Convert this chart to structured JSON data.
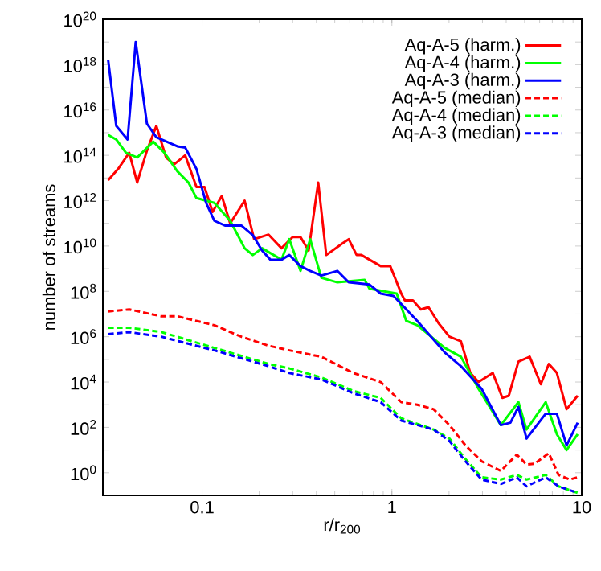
{
  "chart_data": {
    "type": "line",
    "xlabel": "r/r$_{200}$",
    "ylabel": "number of streams",
    "log": "xy",
    "xlim": [
      0.03,
      10
    ],
    "ylim": [
      0.1,
      1e+20
    ],
    "xticks": [
      0.1,
      1,
      10
    ],
    "yticks": [
      {
        "value": 1,
        "label": "10$^{0}$"
      },
      {
        "value": 10,
        "label": null
      },
      {
        "value": 100,
        "label": "10$^{2}$"
      },
      {
        "value": 1000,
        "label": null
      },
      {
        "value": 10000.0,
        "label": "10$^{4}$"
      },
      {
        "value": 100000.0,
        "label": null
      },
      {
        "value": 1000000.0,
        "label": "10$^{6}$"
      },
      {
        "value": 10000000.0,
        "label": null
      },
      {
        "value": 100000000.0,
        "label": "10$^{8}$"
      },
      {
        "value": 1000000000.0,
        "label": null
      },
      {
        "value": 10000000000.0,
        "label": "10$^{10}$"
      },
      {
        "value": 100000000000.0,
        "label": null
      },
      {
        "value": 1000000000000.0,
        "label": "10$^{12}$"
      },
      {
        "value": 10000000000000.0,
        "label": null
      },
      {
        "value": 100000000000000.0,
        "label": "10$^{14}$"
      },
      {
        "value": 1000000000000000.0,
        "label": null
      },
      {
        "value": 1e+16,
        "label": "10$^{16}$"
      },
      {
        "value": 1e+17,
        "label": null
      },
      {
        "value": 1e+18,
        "label": "10$^{18}$"
      },
      {
        "value": 1e+19,
        "label": null
      },
      {
        "value": 1e+20,
        "label": "10$^{20}$"
      }
    ],
    "legend": "top right",
    "series": [
      {
        "name": "Aq-A-5 (harm.)",
        "color": "#ff0000",
        "line_style": "solid",
        "x": [
          0.032,
          0.0361,
          0.0413,
          0.0455,
          0.0512,
          0.0574,
          0.0646,
          0.0712,
          0.0815,
          0.0934,
          0.103,
          0.1135,
          0.127,
          0.1406,
          0.1675,
          0.188,
          0.224,
          0.262,
          0.3,
          0.33,
          0.364,
          0.409,
          0.451,
          0.548,
          0.592,
          0.652,
          0.691,
          0.762,
          0.873,
          0.98,
          1.12,
          1.17,
          1.29,
          1.42,
          1.56,
          1.76,
          2.01,
          2.31,
          2.59,
          2.86,
          3.4,
          3.82,
          4.13,
          4.64,
          5.32,
          6.09,
          6.71,
          7.4,
          8.32,
          9.52
        ],
        "values": [
          8000000000000.0,
          25000000000000.0,
          130000000000000.0,
          6300000000000.0,
          160000000000000.0,
          2000000000000000.0,
          80000000000000.0,
          40000000000000.0,
          100000000000000.0,
          4000000000000.0,
          4000000000000.0,
          320000000000.0,
          1600000000000.0,
          100000000000.0,
          1000000000000.0,
          20000000000.0,
          32000000000.0,
          8000000000.0,
          25000000000.0,
          25000000000.0,
          6300000000.0,
          6300000000000.0,
          4000000000.0,
          13000000000.0,
          20000000000.0,
          4000000000.0,
          4000000000.0,
          2500000000.0,
          1300000000.0,
          1300000000.0,
          80000000.0,
          40000000.0,
          40000000.0,
          16000000.0,
          20000000.0,
          4000000.0,
          1000000.0,
          630000.0,
          25000.0,
          10000.0,
          25000.0,
          2000.0,
          2500.0,
          80000.0,
          130000.0,
          8000.0,
          63000.0,
          25000.0,
          630,
          2500.0
        ]
      },
      {
        "name": "Aq-A-4 (harm.)",
        "color": "#00ff00",
        "line_style": "solid",
        "x": [
          0.032,
          0.0353,
          0.0397,
          0.0455,
          0.0553,
          0.0633,
          0.074,
          0.0848,
          0.0934,
          0.116,
          0.1406,
          0.1675,
          0.185,
          0.207,
          0.262,
          0.288,
          0.33,
          0.371,
          0.425,
          0.516,
          0.719,
          0.762,
          1.06,
          1.19,
          1.36,
          1.9,
          2.31,
          2.86,
          3.75,
          4.64,
          5.12,
          6.46,
          7.4,
          8.32,
          9.52
        ],
        "values": [
          800000000000000.0,
          500000000000000.0,
          130000000000000.0,
          80000000000000.0,
          400000000000000.0,
          130000000000000.0,
          20000000000000.0,
          6300000000000.0,
          1300000000000.0,
          800000000000.0,
          130000000000.0,
          8000000000.0,
          4000000000.0,
          8000000000.0,
          2500000000.0,
          20000000000.0,
          800000000.0,
          20000000000.0,
          400000000.0,
          250000000.0,
          320000000.0,
          130000000.0,
          80000000.0,
          5000000.0,
          3200000.0,
          320000.0,
          130000.0,
          5000.0,
          126,
          1300.0,
          80,
          1300.0,
          50,
          10,
          50
        ]
      },
      {
        "name": "Aq-A-3 (harm.)",
        "color": "#0000ff",
        "line_style": "solid",
        "x": [
          0.032,
          0.0353,
          0.0405,
          0.0447,
          0.0512,
          0.0574,
          0.074,
          0.0815,
          0.0934,
          0.105,
          0.116,
          0.132,
          0.161,
          0.185,
          0.207,
          0.229,
          0.262,
          0.288,
          0.33,
          0.371,
          0.425,
          0.516,
          0.592,
          0.762,
          0.873,
          1.02,
          1.36,
          1.9,
          2.31,
          2.97,
          3.75,
          4.21,
          4.64,
          5.12,
          6.46,
          7.4,
          8.32,
          9.52
        ],
        "values": [
          1.6e+18,
          2000000000000000.0,
          500000000000000.0,
          1e+19,
          2500000000000000.0,
          630000000000000.0,
          250000000000000.0,
          220000000000000.0,
          25000000000000.0,
          800000000000.0,
          130000000000.0,
          80000000000.0,
          80000000000.0,
          30000000000.0,
          6300000000.0,
          2500000000.0,
          2500000000.0,
          4000000000.0,
          1300000000.0,
          800000000.0,
          500000000.0,
          800000000.0,
          250000000.0,
          200000000.0,
          80000000.0,
          63000000.0,
          5000000.0,
          200000.0,
          50000.0,
          5000.0,
          126,
          160,
          800,
          32,
          400,
          400,
          16,
          160
        ]
      },
      {
        "name": "Aq-A-5 (median)",
        "color": "#ff0000",
        "line_style": "dashed",
        "x": [
          0.032,
          0.0413,
          0.061,
          0.074,
          0.116,
          0.161,
          0.224,
          0.288,
          0.425,
          0.627,
          0.873,
          1.12,
          1.36,
          1.66,
          2.01,
          2.44,
          2.97,
          3.75,
          4.55,
          5.12,
          5.64,
          6.71,
          7.55,
          8.65,
          9.52
        ],
        "values": [
          13000000.0,
          16000000.0,
          8000000.0,
          8000000.0,
          3200000.0,
          1000000.0,
          400000.0,
          250000.0,
          130000.0,
          25000.0,
          10000.0,
          1300.0,
          1000.0,
          630,
          126,
          16,
          3.2,
          1.2,
          6.3,
          2.3,
          2.5,
          7.2,
          0.8,
          0.5,
          0.63
        ]
      },
      {
        "name": "Aq-A-4 (median)",
        "color": "#00ff00",
        "line_style": "dashed",
        "x": [
          0.032,
          0.0413,
          0.061,
          0.116,
          0.224,
          0.288,
          0.425,
          0.627,
          0.873,
          1.12,
          1.66,
          2.01,
          2.44,
          2.97,
          3.75,
          4.55,
          5.12,
          6.46,
          7.55,
          9.52
        ],
        "values": [
          2500000.0,
          2500000.0,
          1600000.0,
          320000.0,
          63000.0,
          40000.0,
          16000.0,
          4000.0,
          2000.0,
          250,
          80,
          32,
          4,
          0.63,
          0.5,
          0.8,
          0.5,
          0.8,
          0.25,
          0.13
        ]
      },
      {
        "name": "Aq-A-3 (median)",
        "color": "#0000ff",
        "line_style": "dashed",
        "x": [
          0.032,
          0.0413,
          0.061,
          0.116,
          0.224,
          0.288,
          0.425,
          0.627,
          0.873,
          1.12,
          1.66,
          2.01,
          2.44,
          2.97,
          3.75,
          4.55,
          5.12,
          6.46,
          7.55,
          9.52
        ],
        "values": [
          1300000.0,
          1600000.0,
          1000000.0,
          250000.0,
          50000.0,
          25000.0,
          13000.0,
          3200.0,
          1300.0,
          200,
          80,
          25,
          3.2,
          0.5,
          0.32,
          0.63,
          0.25,
          0.63,
          0.25,
          0.13
        ]
      }
    ]
  }
}
